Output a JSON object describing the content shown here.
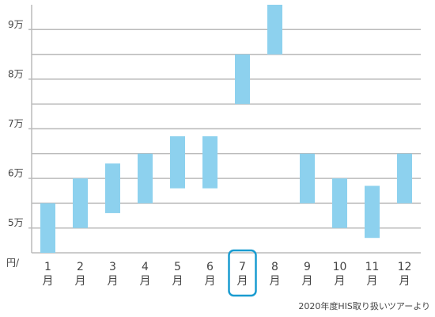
{
  "chart_data": {
    "type": "range_bar",
    "categories": [
      "1月",
      "2月",
      "3月",
      "4月",
      "5月",
      "6月",
      "7月",
      "8月",
      "9月",
      "10月",
      "11月",
      "12月"
    ],
    "low": [
      4.5,
      5.0,
      5.3,
      5.5,
      5.8,
      5.8,
      7.5,
      8.5,
      5.5,
      5.0,
      4.8,
      5.5
    ],
    "high": [
      5.5,
      6.0,
      6.3,
      6.5,
      6.85,
      6.85,
      8.5,
      9.5,
      6.5,
      6.0,
      5.85,
      6.5
    ],
    "color": "#8dd1ee",
    "ylim": [
      4.5,
      9.5
    ],
    "yticks": [
      {
        "value": 5,
        "label": "5万"
      },
      {
        "value": 6,
        "label": "6万"
      },
      {
        "value": 7,
        "label": "7万"
      },
      {
        "value": 8,
        "label": "8万"
      },
      {
        "value": 9,
        "label": "9万"
      }
    ],
    "minor_yticks": [
      4.5,
      5.5,
      6.5,
      7.5,
      8.5
    ],
    "grid": true,
    "highlight": 6,
    "highlight_color": "#1a9cd0",
    "y_unit_label": "円/",
    "source": "2020年度HIS取り扱いツアーより"
  }
}
